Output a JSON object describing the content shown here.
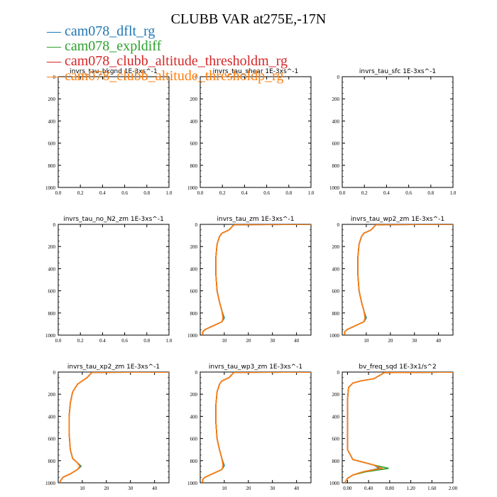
{
  "title": "CLUBB VAR at275E,-17N",
  "legend": [
    {
      "label": "cam078_dflt_rg",
      "color": "#1f77b4"
    },
    {
      "label": "cam078_expldiff",
      "color": "#2ca02c"
    },
    {
      "label": "cam078_clubb_altitude_thresholdm_rg",
      "color": "#d62728"
    },
    {
      "label": "cam078_clubb_altitude_thresholdp_rg",
      "color": "#ff7f0e"
    }
  ],
  "chart_data": [
    {
      "type": "line",
      "title": "invrs_tau_bkgnd   1E-3xs^-1",
      "xlim": [
        0,
        1
      ],
      "ylim": [
        1000,
        0
      ],
      "xticks": [
        "0.0",
        "0.2",
        "0.4",
        "0.6",
        "0.8",
        "1.0"
      ],
      "xtick_values": [
        0,
        0.2,
        0.4,
        0.6,
        0.8,
        1.0
      ],
      "yticks": [
        "0",
        "200",
        "400",
        "600",
        "800",
        "1000"
      ],
      "ytick_values": [
        0,
        200,
        400,
        600,
        800,
        1000
      ],
      "series": []
    },
    {
      "type": "line",
      "title": "invrs_tau_shear   1E-3xs^-1",
      "xlim": [
        0,
        1
      ],
      "ylim": [
        1000,
        0
      ],
      "xticks": [
        "0.0",
        "0.2",
        "0.4",
        "0.6",
        "0.8",
        "1.0"
      ],
      "xtick_values": [
        0,
        0.2,
        0.4,
        0.6,
        0.8,
        1.0
      ],
      "yticks": [
        "0",
        "200",
        "400",
        "600",
        "800",
        "1000"
      ],
      "ytick_values": [
        0,
        200,
        400,
        600,
        800,
        1000
      ],
      "series": []
    },
    {
      "type": "line",
      "title": "invrs_tau_sfc   1E-3xs^-1",
      "xlim": [
        0,
        1
      ],
      "ylim": [
        1000,
        0
      ],
      "xticks": [
        "0.0",
        "0.2",
        "0.4",
        "0.6",
        "0.8",
        "1.0"
      ],
      "xtick_values": [
        0,
        0.2,
        0.4,
        0.6,
        0.8,
        1.0
      ],
      "yticks": [
        "0",
        "200",
        "400",
        "600",
        "800",
        "1000"
      ],
      "ytick_values": [
        0,
        200,
        400,
        600,
        800,
        1000
      ],
      "series": []
    },
    {
      "type": "line",
      "title": "invrs_tau_no_N2_zm   1E-3xs^-1",
      "xlim": [
        0,
        1
      ],
      "ylim": [
        1000,
        0
      ],
      "xticks": [
        "0.0",
        "0.2",
        "0.4",
        "0.6",
        "0.8",
        "1.0"
      ],
      "xtick_values": [
        0,
        0.2,
        0.4,
        0.6,
        0.8,
        1.0
      ],
      "yticks": [
        "0",
        "200",
        "400",
        "600",
        "800",
        "1000"
      ],
      "ytick_values": [
        0,
        200,
        400,
        600,
        800,
        1000
      ],
      "series": []
    },
    {
      "type": "line",
      "title": "invrs_tau_zm   1E-3xs^-1",
      "xlim": [
        0,
        46
      ],
      "ylim": [
        1000,
        0
      ],
      "xticks": [
        "10",
        "20",
        "30",
        "40"
      ],
      "xtick_values": [
        10,
        20,
        30,
        40
      ],
      "yticks": [
        "0",
        "200",
        "400",
        "600",
        "800",
        "1000"
      ],
      "ytick_values": [
        0,
        200,
        400,
        600,
        800,
        1000
      ],
      "series": [
        {
          "color": "#1f77b4",
          "x": [
            46,
            14,
            12,
            9,
            8,
            7,
            6.5,
            6.5,
            7,
            8,
            9,
            10,
            9,
            5,
            2,
            1,
            1,
            0.5
          ],
          "y": [
            0,
            3,
            50,
            80,
            110,
            180,
            300,
            450,
            600,
            700,
            780,
            845,
            880,
            920,
            950,
            970,
            990,
            1000
          ]
        },
        {
          "color": "#2ca02c",
          "x": [
            46,
            14,
            12,
            9,
            8,
            7,
            6.5,
            6.5,
            7,
            8,
            9,
            9.8,
            9,
            5,
            2,
            1,
            1,
            0.5
          ],
          "y": [
            0,
            3,
            50,
            80,
            110,
            180,
            300,
            450,
            600,
            700,
            780,
            845,
            880,
            920,
            950,
            970,
            990,
            1000
          ]
        },
        {
          "color": "#d62728",
          "x": [
            46,
            14,
            12,
            9,
            8,
            7,
            6.5,
            6.5,
            7,
            8,
            9,
            9.5,
            9,
            5,
            2,
            1,
            1,
            0.5
          ],
          "y": [
            0,
            3,
            50,
            80,
            110,
            180,
            300,
            450,
            600,
            700,
            780,
            845,
            880,
            920,
            950,
            970,
            990,
            1000
          ]
        },
        {
          "color": "#ff7f0e",
          "x": [
            46,
            14,
            12,
            9,
            8,
            7,
            6.5,
            6.5,
            7,
            8,
            9,
            9.5,
            9,
            5,
            2,
            1,
            1,
            0.5
          ],
          "y": [
            0,
            3,
            50,
            80,
            110,
            180,
            300,
            450,
            600,
            700,
            780,
            845,
            880,
            920,
            950,
            970,
            990,
            1000
          ]
        }
      ]
    },
    {
      "type": "line",
      "title": "invrs_tau_wp2_zm   1E-3xs^-1",
      "xlim": [
        0,
        46
      ],
      "ylim": [
        1000,
        0
      ],
      "xticks": [
        "10",
        "20",
        "30",
        "40"
      ],
      "xtick_values": [
        10,
        20,
        30,
        40
      ],
      "yticks": [
        "0",
        "200",
        "400",
        "600",
        "800",
        "1000"
      ],
      "ytick_values": [
        0,
        200,
        400,
        600,
        800,
        1000
      ],
      "series": [
        {
          "color": "#1f77b4",
          "x": [
            46,
            14,
            12,
            9,
            8,
            7,
            6.5,
            6.5,
            7,
            8,
            9,
            10,
            9,
            5,
            2,
            1,
            1,
            0.5
          ],
          "y": [
            0,
            3,
            50,
            80,
            110,
            180,
            300,
            450,
            600,
            700,
            780,
            845,
            880,
            920,
            950,
            970,
            990,
            1000
          ]
        },
        {
          "color": "#2ca02c",
          "x": [
            46,
            14,
            12,
            9,
            8,
            7,
            6.5,
            6.5,
            7,
            8,
            9,
            9.8,
            9,
            5,
            2,
            1,
            1,
            0.5
          ],
          "y": [
            0,
            3,
            50,
            80,
            110,
            180,
            300,
            450,
            600,
            700,
            780,
            845,
            880,
            920,
            950,
            970,
            990,
            1000
          ]
        },
        {
          "color": "#d62728",
          "x": [
            46,
            14,
            12,
            9,
            8,
            7,
            6.5,
            6.5,
            7,
            8,
            9,
            9.5,
            9,
            5,
            2,
            1,
            1,
            0.5
          ],
          "y": [
            0,
            3,
            50,
            80,
            110,
            180,
            300,
            450,
            600,
            700,
            780,
            845,
            880,
            920,
            950,
            970,
            990,
            1000
          ]
        },
        {
          "color": "#ff7f0e",
          "x": [
            46,
            14,
            12,
            9,
            8,
            7,
            6.5,
            6.5,
            7,
            8,
            9,
            9.5,
            9,
            5,
            2,
            1,
            1,
            0.5
          ],
          "y": [
            0,
            3,
            50,
            80,
            110,
            180,
            300,
            450,
            600,
            700,
            780,
            845,
            880,
            920,
            950,
            970,
            990,
            1000
          ]
        }
      ]
    },
    {
      "type": "line",
      "title": "invrs_tau_xp2_zm   1E-3xs^-1",
      "xlim": [
        0,
        46
      ],
      "ylim": [
        1000,
        0
      ],
      "xticks": [
        "10",
        "20",
        "30",
        "40"
      ],
      "xtick_values": [
        10,
        20,
        30,
        40
      ],
      "yticks": [
        "0",
        "200",
        "400",
        "600",
        "800",
        "1000"
      ],
      "ytick_values": [
        0,
        200,
        400,
        600,
        800,
        1000
      ],
      "series": [
        {
          "color": "#1f77b4",
          "x": [
            46,
            14,
            12,
            10,
            8,
            6,
            5,
            4.5,
            4.5,
            5,
            6,
            8,
            9.5,
            8,
            5,
            2,
            1,
            0.5
          ],
          "y": [
            0,
            3,
            50,
            80,
            110,
            180,
            280,
            400,
            550,
            700,
            780,
            820,
            850,
            880,
            920,
            950,
            980,
            1000
          ]
        },
        {
          "color": "#2ca02c",
          "x": [
            46,
            14,
            12,
            10,
            8,
            6,
            5,
            4.5,
            4.5,
            5,
            6,
            8,
            9.3,
            8,
            5,
            2,
            1,
            0.5
          ],
          "y": [
            0,
            3,
            50,
            80,
            110,
            180,
            280,
            400,
            550,
            700,
            780,
            820,
            850,
            880,
            920,
            950,
            980,
            1000
          ]
        },
        {
          "color": "#d62728",
          "x": [
            46,
            14,
            12,
            10,
            8,
            6,
            5,
            4.5,
            4.5,
            5,
            6,
            8,
            9,
            8,
            5,
            2,
            1,
            0.5
          ],
          "y": [
            0,
            3,
            50,
            80,
            110,
            180,
            280,
            400,
            550,
            700,
            780,
            820,
            850,
            880,
            920,
            950,
            980,
            1000
          ]
        },
        {
          "color": "#ff7f0e",
          "x": [
            46,
            14,
            12,
            10,
            8,
            6,
            5,
            4.5,
            4.5,
            5,
            6,
            8,
            9,
            8,
            5,
            2,
            1,
            0.5
          ],
          "y": [
            0,
            3,
            50,
            80,
            110,
            180,
            280,
            400,
            550,
            700,
            780,
            820,
            850,
            880,
            920,
            950,
            980,
            1000
          ]
        }
      ]
    },
    {
      "type": "line",
      "title": "invrs_tau_wp3_zm   1E-3xs^-1",
      "xlim": [
        0,
        46
      ],
      "ylim": [
        1000,
        0
      ],
      "xticks": [
        "10",
        "20",
        "30",
        "40"
      ],
      "xtick_values": [
        10,
        20,
        30,
        40
      ],
      "yticks": [
        "0",
        "200",
        "400",
        "600",
        "800",
        "1000"
      ],
      "ytick_values": [
        0,
        200,
        400,
        600,
        800,
        1000
      ],
      "series": [
        {
          "color": "#1f77b4",
          "x": [
            46,
            14,
            12,
            9,
            8,
            7,
            6.5,
            6.5,
            7,
            8,
            9,
            10,
            9,
            5,
            2,
            1,
            1,
            0.5
          ],
          "y": [
            0,
            3,
            50,
            80,
            110,
            180,
            300,
            450,
            600,
            700,
            780,
            845,
            880,
            920,
            950,
            970,
            990,
            1000
          ]
        },
        {
          "color": "#2ca02c",
          "x": [
            46,
            14,
            12,
            9,
            8,
            7,
            6.5,
            6.5,
            7,
            8,
            9,
            9.8,
            9,
            5,
            2,
            1,
            1,
            0.5
          ],
          "y": [
            0,
            3,
            50,
            80,
            110,
            180,
            300,
            450,
            600,
            700,
            780,
            845,
            880,
            920,
            950,
            970,
            990,
            1000
          ]
        },
        {
          "color": "#d62728",
          "x": [
            46,
            14,
            12,
            9,
            8,
            7,
            6.5,
            6.5,
            7,
            8,
            9,
            9.5,
            9,
            5,
            2,
            1,
            1,
            0.5
          ],
          "y": [
            0,
            3,
            50,
            80,
            110,
            180,
            300,
            450,
            600,
            700,
            780,
            845,
            880,
            920,
            950,
            970,
            990,
            1000
          ]
        },
        {
          "color": "#ff7f0e",
          "x": [
            46,
            14,
            12,
            9,
            8,
            7,
            6.5,
            6.5,
            7,
            8,
            9,
            9.5,
            9,
            5,
            2,
            1,
            1,
            0.5
          ],
          "y": [
            0,
            3,
            50,
            80,
            110,
            180,
            300,
            450,
            600,
            700,
            780,
            845,
            880,
            920,
            950,
            970,
            990,
            1000
          ]
        }
      ]
    },
    {
      "type": "line",
      "title": "bv_freq_sqd   1E-3x1/s^2",
      "xlim": [
        -0.1,
        2.0
      ],
      "ylim": [
        1000,
        0
      ],
      "xticks": [
        "0.00",
        "0.40",
        "0.80",
        "1.20",
        "1.60",
        "2.00"
      ],
      "xtick_values": [
        0,
        0.4,
        0.8,
        1.2,
        1.6,
        2.0
      ],
      "yticks": [
        "0",
        "200",
        "400",
        "600",
        "800",
        "1000"
      ],
      "ytick_values": [
        0,
        200,
        400,
        600,
        800,
        1000
      ],
      "series": [
        {
          "color": "#1f77b4",
          "x": [
            2.0,
            0.7,
            0.5,
            0.25,
            0.1,
            0.02,
            0,
            0,
            0,
            0.1,
            0.5,
            0.6,
            0.3,
            0.1,
            0,
            -0.05
          ],
          "y": [
            0,
            5,
            60,
            80,
            100,
            140,
            250,
            500,
            700,
            790,
            840,
            870,
            900,
            930,
            960,
            1000
          ]
        },
        {
          "color": "#2ca02c",
          "x": [
            2.0,
            0.7,
            0.5,
            0.25,
            0.1,
            0.02,
            0,
            0,
            0,
            0.1,
            0.5,
            0.78,
            0.35,
            0.1,
            0,
            -0.05
          ],
          "y": [
            0,
            5,
            60,
            80,
            100,
            140,
            250,
            500,
            700,
            790,
            840,
            870,
            900,
            930,
            960,
            1000
          ]
        },
        {
          "color": "#d62728",
          "x": [
            2.0,
            0.7,
            0.5,
            0.25,
            0.1,
            0.02,
            0,
            0,
            0,
            0.1,
            0.5,
            0.65,
            0.3,
            0.1,
            0,
            -0.05
          ],
          "y": [
            0,
            5,
            60,
            80,
            100,
            140,
            250,
            500,
            700,
            790,
            840,
            870,
            900,
            930,
            960,
            1000
          ]
        },
        {
          "color": "#ff7f0e",
          "x": [
            2.0,
            0.7,
            0.5,
            0.25,
            0.1,
            0.02,
            0,
            0,
            0,
            0.1,
            0.5,
            0.65,
            0.3,
            0.1,
            0,
            -0.05
          ],
          "y": [
            0,
            5,
            60,
            80,
            100,
            140,
            250,
            500,
            700,
            790,
            840,
            870,
            900,
            930,
            960,
            1000
          ]
        }
      ]
    }
  ]
}
